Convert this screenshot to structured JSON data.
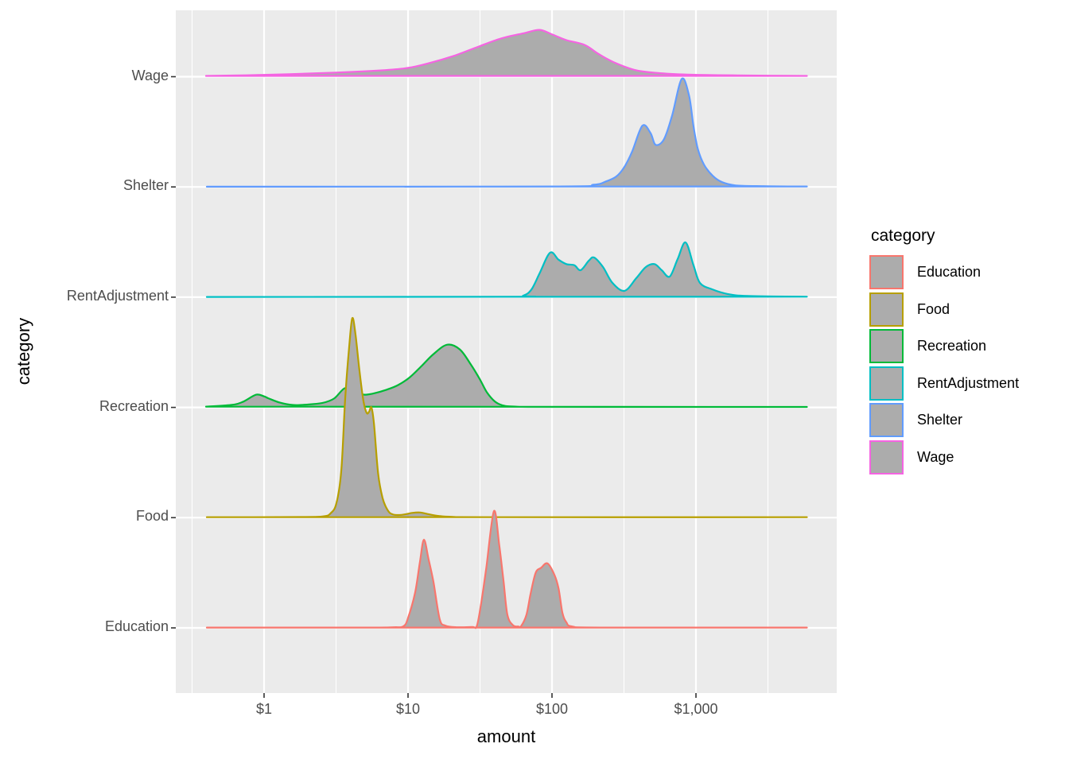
{
  "figure": {
    "x_axis_title": "amount",
    "y_axis_title": "category",
    "legend_title": "category"
  },
  "colors": {
    "panel_background": "#EBEBEB",
    "gridline": "#FFFFFF",
    "density_fill": "#ACACAC",
    "axis_text": "#4D4D4D",
    "tick_mark": "#333333",
    "Education": "#F8766D",
    "Food": "#B79F00",
    "Recreation": "#00BA38",
    "RentAdjustment": "#00BFC4",
    "Shelter": "#619CFF",
    "Wage": "#F564E2"
  },
  "chart_data": {
    "type": "area",
    "variant": "ridgeline-density",
    "title": "",
    "xlabel": "amount",
    "ylabel": "category",
    "legend_title": "category",
    "legend_position": "right",
    "grid": true,
    "x_scale": {
      "type": "log10",
      "unit": "dollars",
      "ticks": [
        {
          "value": 1,
          "label": "$1"
        },
        {
          "value": 10,
          "label": "$10"
        },
        {
          "value": 100,
          "label": "$100"
        },
        {
          "value": 1000,
          "label": "$1,000"
        }
      ],
      "data_min": 0.4,
      "data_max": 5900
    },
    "y_categories_top_to_bottom": [
      "Wage",
      "Shelter",
      "RentAdjustment",
      "Recreation",
      "Food",
      "Education"
    ],
    "height_unit": "multiples of category row spacing",
    "series": [
      {
        "name": "Education",
        "color": "#F8766D",
        "points": [
          [
            0.4,
            0.003
          ],
          [
            5,
            0.003
          ],
          [
            7.9,
            0.006
          ],
          [
            9.3,
            0.015
          ],
          [
            10,
            0.09
          ],
          [
            11.2,
            0.32
          ],
          [
            12.1,
            0.6
          ],
          [
            12.9,
            0.8
          ],
          [
            13.9,
            0.62
          ],
          [
            15,
            0.42
          ],
          [
            16.6,
            0.08
          ],
          [
            18.2,
            0.02
          ],
          [
            22,
            0.006
          ],
          [
            28,
            0.008
          ],
          [
            30,
            0.015
          ],
          [
            32,
            0.2
          ],
          [
            35,
            0.55
          ],
          [
            39.5,
            1.06
          ],
          [
            43,
            0.75
          ],
          [
            46,
            0.43
          ],
          [
            49,
            0.12
          ],
          [
            53.5,
            0.025
          ],
          [
            58.5,
            0.012
          ],
          [
            61,
            0.015
          ],
          [
            66.5,
            0.12
          ],
          [
            71,
            0.31
          ],
          [
            77,
            0.5
          ],
          [
            84,
            0.545
          ],
          [
            93,
            0.585
          ],
          [
            104,
            0.48
          ],
          [
            111,
            0.36
          ],
          [
            118,
            0.14
          ],
          [
            126,
            0.05
          ],
          [
            139,
            0.012
          ],
          [
            230,
            0.003
          ],
          [
            5900,
            0.003
          ]
        ]
      },
      {
        "name": "Food",
        "color": "#B79F00",
        "points": [
          [
            0.4,
            0.004
          ],
          [
            1.8,
            0.006
          ],
          [
            2.6,
            0.012
          ],
          [
            2.9,
            0.04
          ],
          [
            3.18,
            0.13
          ],
          [
            3.44,
            0.43
          ],
          [
            3.66,
            1.08
          ],
          [
            3.9,
            1.55
          ],
          [
            4.1,
            1.81
          ],
          [
            4.32,
            1.66
          ],
          [
            4.6,
            1.33
          ],
          [
            4.9,
            1.06
          ],
          [
            5.16,
            0.95
          ],
          [
            5.36,
            0.96
          ],
          [
            5.57,
            1.0
          ],
          [
            5.8,
            0.85
          ],
          [
            6.2,
            0.4
          ],
          [
            6.65,
            0.18
          ],
          [
            7.2,
            0.07
          ],
          [
            7.8,
            0.03
          ],
          [
            9,
            0.025
          ],
          [
            10.7,
            0.043
          ],
          [
            12.1,
            0.047
          ],
          [
            14,
            0.03
          ],
          [
            16.4,
            0.015
          ],
          [
            20.5,
            0.007
          ],
          [
            39,
            0.004
          ],
          [
            5900,
            0.004
          ]
        ]
      },
      {
        "name": "Recreation",
        "color": "#00BA38",
        "points": [
          [
            0.395,
            0.007
          ],
          [
            0.59,
            0.022
          ],
          [
            0.71,
            0.05
          ],
          [
            0.88,
            0.115
          ],
          [
            1.0,
            0.1
          ],
          [
            1.07,
            0.083
          ],
          [
            1.29,
            0.043
          ],
          [
            1.58,
            0.022
          ],
          [
            1.96,
            0.025
          ],
          [
            2.53,
            0.04
          ],
          [
            3.06,
            0.08
          ],
          [
            3.62,
            0.173
          ],
          [
            4.1,
            0.151
          ],
          [
            4.6,
            0.122
          ],
          [
            5.1,
            0.115
          ],
          [
            5.9,
            0.13
          ],
          [
            7,
            0.158
          ],
          [
            8.5,
            0.202
          ],
          [
            10.3,
            0.274
          ],
          [
            12.4,
            0.375
          ],
          [
            15,
            0.483
          ],
          [
            18.7,
            0.569
          ],
          [
            22.9,
            0.526
          ],
          [
            27.3,
            0.39
          ],
          [
            31.4,
            0.26
          ],
          [
            35.2,
            0.14
          ],
          [
            40,
            0.055
          ],
          [
            45,
            0.02
          ],
          [
            54,
            0.008
          ],
          [
            108,
            0.004
          ],
          [
            5900,
            0.004
          ]
        ]
      },
      {
        "name": "RentAdjustment",
        "color": "#00BFC4",
        "points": [
          [
            0.4,
            0.002
          ],
          [
            50,
            0.004
          ],
          [
            63,
            0.014
          ],
          [
            72,
            0.07
          ],
          [
            82,
            0.216
          ],
          [
            97,
            0.404
          ],
          [
            111,
            0.34
          ],
          [
            126,
            0.3
          ],
          [
            143,
            0.29
          ],
          [
            158,
            0.245
          ],
          [
            180,
            0.33
          ],
          [
            196,
            0.36
          ],
          [
            226,
            0.274
          ],
          [
            263,
            0.13
          ],
          [
            319,
            0.058
          ],
          [
            385,
            0.173
          ],
          [
            449,
            0.274
          ],
          [
            516,
            0.3
          ],
          [
            578,
            0.245
          ],
          [
            657,
            0.187
          ],
          [
            746,
            0.346
          ],
          [
            847,
            0.497
          ],
          [
            962,
            0.288
          ],
          [
            1066,
            0.13
          ],
          [
            1290,
            0.072
          ],
          [
            1660,
            0.029
          ],
          [
            2290,
            0.011
          ],
          [
            5900,
            0.004
          ]
        ]
      },
      {
        "name": "Shelter",
        "color": "#619CFF",
        "points": [
          [
            0.4,
            0.002
          ],
          [
            100,
            0.004
          ],
          [
            195,
            0.02
          ],
          [
            237,
            0.05
          ],
          [
            280,
            0.095
          ],
          [
            318,
            0.18
          ],
          [
            360,
            0.32
          ],
          [
            424,
            0.555
          ],
          [
            483,
            0.49
          ],
          [
            525,
            0.382
          ],
          [
            600,
            0.433
          ],
          [
            684,
            0.65
          ],
          [
            796,
            0.98
          ],
          [
            895,
            0.83
          ],
          [
            960,
            0.555
          ],
          [
            1030,
            0.346
          ],
          [
            1140,
            0.2
          ],
          [
            1310,
            0.1
          ],
          [
            1520,
            0.043
          ],
          [
            1890,
            0.014
          ],
          [
            2950,
            0.007
          ],
          [
            5900,
            0.004
          ]
        ]
      },
      {
        "name": "Wage",
        "color": "#F564E2",
        "points": [
          [
            0.395,
            0.007
          ],
          [
            1.1,
            0.018
          ],
          [
            3,
            0.036
          ],
          [
            6.6,
            0.058
          ],
          [
            10,
            0.08
          ],
          [
            14,
            0.123
          ],
          [
            20.6,
            0.187
          ],
          [
            30,
            0.267
          ],
          [
            44,
            0.346
          ],
          [
            65,
            0.397
          ],
          [
            82,
            0.425
          ],
          [
            101,
            0.382
          ],
          [
            126,
            0.332
          ],
          [
            169,
            0.288
          ],
          [
            209,
            0.209
          ],
          [
            270,
            0.13
          ],
          [
            385,
            0.058
          ],
          [
            565,
            0.032
          ],
          [
            940,
            0.018
          ],
          [
            2280,
            0.011
          ],
          [
            5900,
            0.007
          ]
        ]
      }
    ]
  }
}
